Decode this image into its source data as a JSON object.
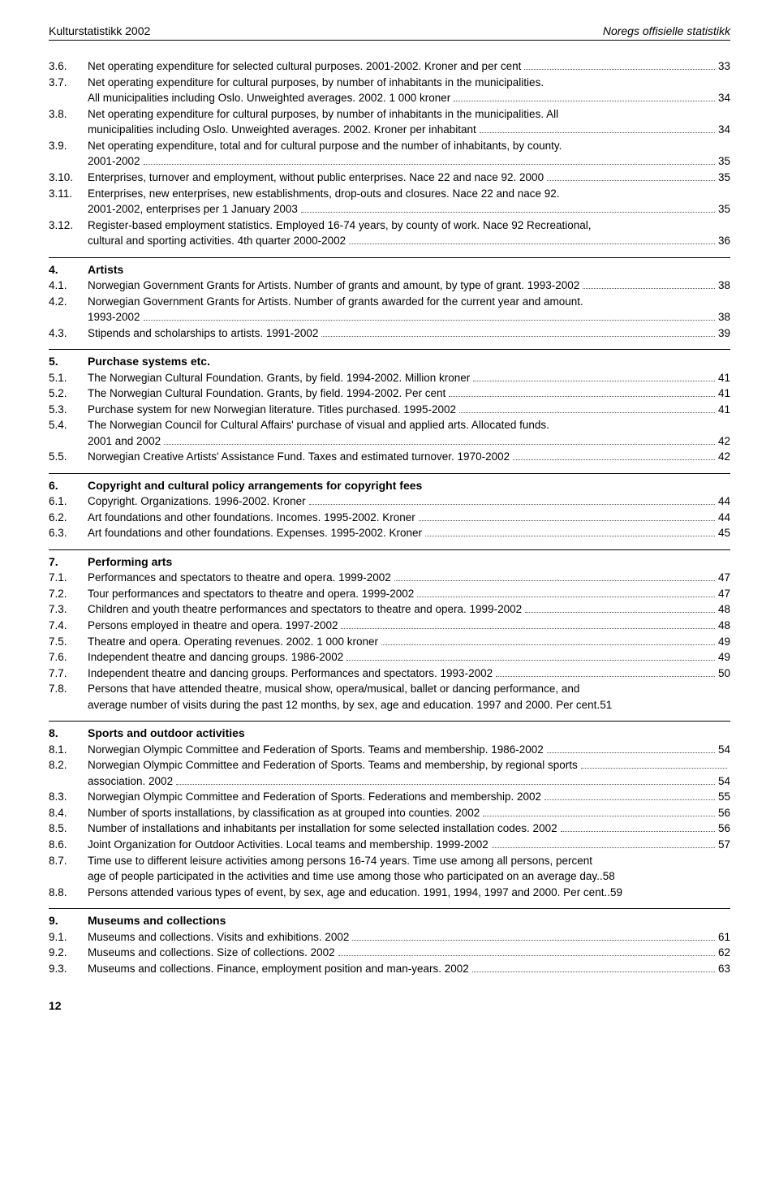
{
  "header": {
    "left": "Kulturstatistikk 2002",
    "right": "Noregs offisielle statistikk"
  },
  "footerPage": "12",
  "initialEntries": [
    {
      "num": "3.6.",
      "text": "Net operating expenditure for selected cultural purposes. 2001-2002. Kroner and per cent",
      "page": "33"
    },
    {
      "num": "3.7.",
      "wrap": "Net operating expenditure for cultural purposes, by number of inhabitants in the municipalities.",
      "cont": "All municipalities including Oslo. Unweighted averages. 2002. 1 000 kroner",
      "page": "34"
    },
    {
      "num": "3.8.",
      "wrap": "Net operating expenditure for cultural purposes, by number of inhabitants in the municipalities. All",
      "cont": "municipalities including Oslo. Unweighted averages. 2002. Kroner per inhabitant",
      "page": "34"
    },
    {
      "num": "3.9.",
      "wrap": "Net operating expenditure, total and for cultural purpose and the number of inhabitants, by county.",
      "cont": "2001-2002",
      "page": "35"
    },
    {
      "num": "3.10.",
      "text": "Enterprises, turnover and employment, without public enterprises. Nace 22 and nace 92. 2000",
      "page": "35"
    },
    {
      "num": "3.11.",
      "wrap": "Enterprises, new enterprises, new establishments, drop-outs and closures. Nace 22 and nace 92.",
      "cont": "2001-2002, enterprises per 1 January 2003",
      "page": "35"
    },
    {
      "num": "3.12.",
      "wrap": "Register-based employment statistics. Employed 16-74 years, by county of work. Nace 92 Recreational,",
      "cont": "cultural and sporting activities. 4th quarter 2000-2002",
      "page": "36"
    }
  ],
  "sections": [
    {
      "num": "4.",
      "title": "Artists",
      "entries": [
        {
          "num": "4.1.",
          "text": "Norwegian Government Grants for Artists. Number of grants and amount, by type of grant. 1993-2002",
          "page": "38"
        },
        {
          "num": "4.2.",
          "wrap": "Norwegian Government Grants for Artists. Number of grants awarded for the current year and amount.",
          "cont": "1993-2002",
          "page": "38"
        },
        {
          "num": "4.3.",
          "text": "Stipends and scholarships to artists. 1991-2002",
          "page": "39"
        }
      ]
    },
    {
      "num": "5.",
      "title": "Purchase systems etc.",
      "entries": [
        {
          "num": "5.1.",
          "text": "The Norwegian Cultural Foundation. Grants, by field. 1994-2002. Million kroner",
          "page": "41"
        },
        {
          "num": "5.2.",
          "text": "The Norwegian Cultural Foundation. Grants, by field. 1994-2002. Per cent",
          "page": "41"
        },
        {
          "num": "5.3.",
          "text": "Purchase system for new Norwegian literature. Titles purchased. 1995-2002",
          "page": "41"
        },
        {
          "num": "5.4.",
          "wrap": "The Norwegian Council for Cultural Affairs' purchase of visual and applied arts. Allocated funds.",
          "cont": "2001 and 2002",
          "page": "42"
        },
        {
          "num": "5.5.",
          "text": "Norwegian Creative Artists' Assistance Fund. Taxes and estimated turnover. 1970-2002",
          "page": "42"
        }
      ]
    },
    {
      "num": "6.",
      "title": "Copyright and cultural policy arrangements for copyright fees",
      "entries": [
        {
          "num": "6.1.",
          "text": "Copyright. Organizations. 1996-2002. Kroner",
          "page": "44"
        },
        {
          "num": "6.2.",
          "text": "Art foundations and other foundations. Incomes. 1995-2002. Kroner",
          "page": "44"
        },
        {
          "num": "6.3.",
          "text": "Art foundations and other foundations. Expenses. 1995-2002. Kroner",
          "page": "45"
        }
      ]
    },
    {
      "num": "7.",
      "title": "Performing arts",
      "entries": [
        {
          "num": "7.1.",
          "text": "Performances and spectators to theatre and opera. 1999-2002",
          "page": "47"
        },
        {
          "num": "7.2.",
          "text": "Tour performances and spectators to theatre and opera. 1999-2002",
          "page": "47"
        },
        {
          "num": "7.3.",
          "text": "Children and youth theatre performances and spectators to theatre and opera. 1999-2002",
          "page": "48"
        },
        {
          "num": "7.4.",
          "text": "Persons employed in theatre and opera. 1997-2002",
          "page": "48"
        },
        {
          "num": "7.5.",
          "text": "Theatre and opera. Operating revenues. 2002. 1 000 kroner",
          "page": "49"
        },
        {
          "num": "7.6.",
          "text": "Independent theatre and dancing groups. 1986-2002",
          "page": "49"
        },
        {
          "num": "7.7.",
          "text": "Independent theatre and dancing groups. Performances and spectators. 1993-2002",
          "page": "50"
        },
        {
          "num": "7.8.",
          "wrap": "Persons that have attended theatre, musical show, opera/musical, ballet or dancing performance, and",
          "wrap2": "average number of visits during the past 12 months, by sex, age and education. 1997 and 2000. Per cent",
          "page": "51"
        }
      ]
    },
    {
      "num": "8.",
      "title": "Sports and outdoor activities",
      "entries": [
        {
          "num": "8.1.",
          "text": "Norwegian Olympic Committee and Federation of Sports. Teams and membership. 1986-2002",
          "page": "54"
        },
        {
          "num": "8.2.",
          "text": "Norwegian Olympic Committee and Federation of Sports. Teams and membership, by regional sports",
          "contText": "association. 2002",
          "page": "54",
          "trailingLeader": true
        },
        {
          "num": "8.3.",
          "text": "Norwegian Olympic Committee and Federation of Sports. Federations and membership. 2002",
          "page": "55"
        },
        {
          "num": "8.4.",
          "text": "Number of sports installations, by classification as at grouped into counties. 2002",
          "page": "56"
        },
        {
          "num": "8.5.",
          "text": "Number of installations and inhabitants per installation for some selected installation codes. 2002",
          "page": "56"
        },
        {
          "num": "8.6.",
          "text": "Joint Organization for Outdoor Activities. Local teams and membership. 1999-2002",
          "page": "57"
        },
        {
          "num": "8.7.",
          "wrap": "Time use to different leisure activities among persons 16-74 years. Time use among all persons, percent",
          "cont": "age of people participated in the activities and time use among those who participated on an average day.",
          "page": "58",
          "contNoLeader": true
        },
        {
          "num": "8.8.",
          "text": "Persons attended various types of event, by sex, age and education. 1991, 1994, 1997 and 2000. Per cent",
          "page": "59",
          "noLeader": true
        }
      ]
    },
    {
      "num": "9.",
      "title": "Museums and collections",
      "entries": [
        {
          "num": "9.1.",
          "text": "Museums and collections. Visits and exhibitions. 2002",
          "page": "61"
        },
        {
          "num": "9.2.",
          "text": "Museums and collections. Size of collections. 2002",
          "page": "62"
        },
        {
          "num": "9.3.",
          "text": "Museums and collections. Finance, employment position and man-years. 2002",
          "page": "63"
        }
      ]
    }
  ]
}
